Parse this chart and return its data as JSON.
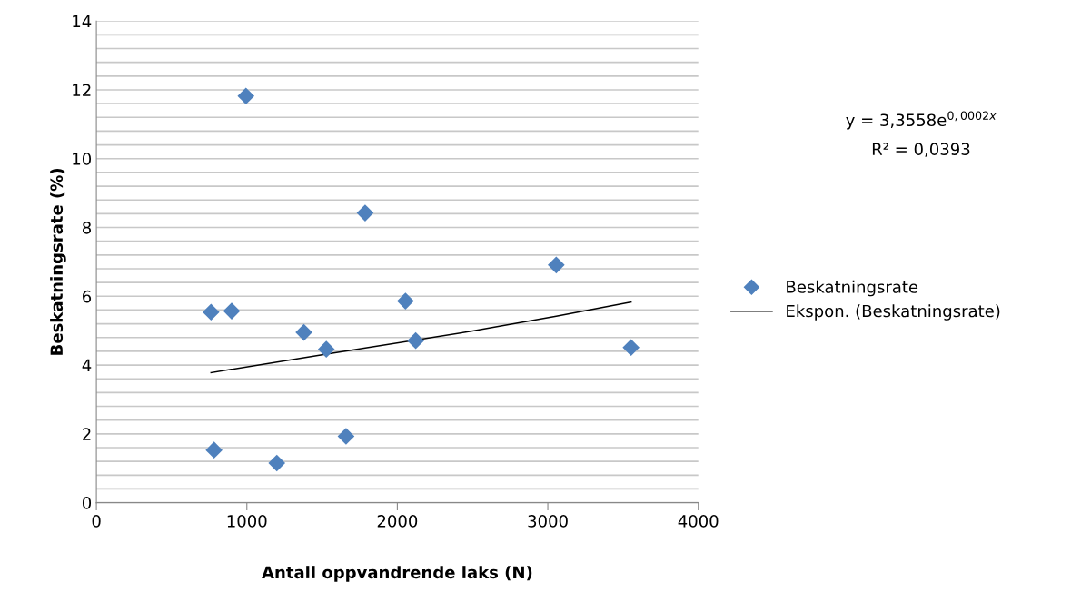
{
  "chart_data": {
    "type": "scatter",
    "xlabel": "Antall oppvandrende laks (N)",
    "ylabel": "Beskatningsrate (%)",
    "series": [
      {
        "name": "Beskatningsrate",
        "color": "#4f81bd",
        "marker": "diamond",
        "x": [
          762,
          899,
          994,
          782,
          1199,
          1379,
          1528,
          1659,
          1786,
          2054,
          2122,
          3056,
          3553
        ],
        "values": [
          5.54,
          5.57,
          11.82,
          1.53,
          1.15,
          4.95,
          4.46,
          1.93,
          8.42,
          5.86,
          4.71,
          6.91,
          4.51
        ]
      },
      {
        "name": "Ekspon. (Beskatningsrate)",
        "type": "line",
        "color": "#000000",
        "marker": "none",
        "line_style": "solid",
        "x": [
          762,
          1500,
          2500,
          3056,
          3553
        ],
        "values": [
          3.78,
          4.3,
          4.99,
          5.42,
          5.83
        ]
      }
    ],
    "annotations": [
      "y = 3,3558e$^{0,0002x}$",
      "R² = 0,0393"
    ],
    "xlim": [
      0,
      4000
    ],
    "xticks": [
      0,
      1000,
      2000,
      3000,
      4000
    ],
    "ylim": [
      0,
      14
    ],
    "yticks": [
      0,
      {
        "value": 0.4,
        "label": null
      },
      {
        "value": 0.8,
        "label": null
      },
      {
        "value": 1.2,
        "label": null
      },
      {
        "value": 1.6,
        "label": null
      },
      2,
      {
        "value": 2.4,
        "label": null
      },
      {
        "value": 2.8,
        "label": null
      },
      {
        "value": 3.2,
        "label": null
      },
      {
        "value": 3.6,
        "label": null
      },
      4,
      {
        "value": 4.4,
        "label": null
      },
      {
        "value": 4.8,
        "label": null
      },
      {
        "value": 5.2,
        "label": null
      },
      {
        "value": 5.6,
        "label": null
      },
      6,
      {
        "value": 6.4,
        "label": null
      },
      {
        "value": 6.8,
        "label": null
      },
      {
        "value": 7.2,
        "label": null
      },
      {
        "value": 7.6,
        "label": null
      },
      8,
      {
        "value": 8.4,
        "label": null
      },
      {
        "value": 8.8,
        "label": null
      },
      {
        "value": 9.2,
        "label": null
      },
      {
        "value": 9.6,
        "label": null
      },
      10,
      {
        "value": 10.4,
        "label": null
      },
      {
        "value": 10.8,
        "label": null
      },
      {
        "value": 11.2,
        "label": null
      },
      {
        "value": 11.6,
        "label": null
      },
      12,
      {
        "value": 12.4,
        "label": null
      },
      {
        "value": 12.8,
        "label": null
      },
      {
        "value": 13.2,
        "label": null
      },
      {
        "value": 13.6,
        "label": null
      },
      14
    ],
    "grid": "y",
    "legend": "right"
  }
}
